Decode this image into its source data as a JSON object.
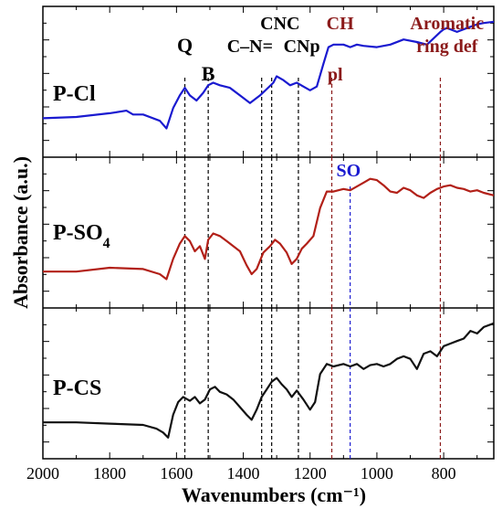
{
  "chart_data": {
    "type": "line",
    "xlabel": "Wavenumbers",
    "xunit": "(cm⁻¹)",
    "ylabel": "Absorbance (a.u.)",
    "xlim": [
      2000,
      650
    ],
    "x_reversed": true,
    "x_ticks": [
      2000,
      1800,
      1600,
      1400,
      1200,
      1000,
      800
    ],
    "y_ticks": "unlabeled",
    "grid": false,
    "panels": [
      {
        "label_main": "P-Cl",
        "label_sub": "",
        "color": "#1a1ad0",
        "x": [
          2000,
          1900,
          1800,
          1750,
          1730,
          1700,
          1650,
          1630,
          1610,
          1590,
          1575,
          1560,
          1540,
          1520,
          1505,
          1490,
          1470,
          1440,
          1410,
          1380,
          1350,
          1330,
          1310,
          1300,
          1280,
          1260,
          1240,
          1220,
          1200,
          1180,
          1160,
          1145,
          1130,
          1100,
          1080,
          1060,
          1040,
          1000,
          960,
          920,
          880,
          850,
          830,
          810,
          800,
          790,
          760,
          730,
          700,
          680,
          650
        ],
        "y": [
          0.22,
          0.23,
          0.26,
          0.28,
          0.25,
          0.25,
          0.2,
          0.14,
          0.3,
          0.4,
          0.46,
          0.4,
          0.36,
          0.42,
          0.48,
          0.5,
          0.48,
          0.46,
          0.4,
          0.34,
          0.4,
          0.45,
          0.5,
          0.55,
          0.52,
          0.48,
          0.5,
          0.47,
          0.44,
          0.47,
          0.65,
          0.78,
          0.8,
          0.8,
          0.78,
          0.8,
          0.79,
          0.78,
          0.8,
          0.84,
          0.82,
          0.8,
          0.85,
          0.9,
          0.92,
          0.93,
          0.9,
          0.93,
          0.96,
          0.97,
          0.98
        ]
      },
      {
        "label_main": "P-SO",
        "label_sub": "4",
        "color": "#b22018",
        "x": [
          2000,
          1900,
          1800,
          1700,
          1650,
          1630,
          1610,
          1590,
          1575,
          1560,
          1545,
          1530,
          1515,
          1505,
          1490,
          1470,
          1450,
          1430,
          1410,
          1390,
          1375,
          1360,
          1340,
          1320,
          1305,
          1290,
          1270,
          1255,
          1240,
          1225,
          1210,
          1190,
          1170,
          1150,
          1130,
          1100,
          1080,
          1060,
          1040,
          1020,
          1000,
          980,
          960,
          940,
          920,
          900,
          880,
          860,
          840,
          820,
          800,
          780,
          760,
          740,
          720,
          700,
          680,
          650
        ],
        "y": [
          0.2,
          0.2,
          0.23,
          0.22,
          0.18,
          0.14,
          0.3,
          0.42,
          0.48,
          0.44,
          0.36,
          0.4,
          0.3,
          0.45,
          0.5,
          0.48,
          0.44,
          0.4,
          0.36,
          0.25,
          0.18,
          0.22,
          0.35,
          0.4,
          0.45,
          0.42,
          0.35,
          0.26,
          0.3,
          0.38,
          0.42,
          0.48,
          0.7,
          0.83,
          0.83,
          0.85,
          0.84,
          0.87,
          0.9,
          0.93,
          0.92,
          0.88,
          0.83,
          0.82,
          0.86,
          0.84,
          0.8,
          0.78,
          0.82,
          0.85,
          0.87,
          0.88,
          0.86,
          0.85,
          0.83,
          0.84,
          0.82,
          0.8
        ]
      },
      {
        "label_main": "P-CS",
        "label_sub": "",
        "color": "#111111",
        "x": [
          2000,
          1900,
          1800,
          1700,
          1660,
          1640,
          1625,
          1610,
          1595,
          1580,
          1560,
          1545,
          1530,
          1515,
          1500,
          1485,
          1470,
          1450,
          1430,
          1410,
          1390,
          1375,
          1360,
          1345,
          1330,
          1315,
          1300,
          1285,
          1270,
          1255,
          1240,
          1220,
          1200,
          1185,
          1170,
          1150,
          1130,
          1100,
          1080,
          1060,
          1040,
          1020,
          1000,
          980,
          960,
          940,
          920,
          900,
          880,
          860,
          840,
          820,
          800,
          780,
          760,
          740,
          720,
          700,
          680,
          650
        ],
        "y": [
          0.2,
          0.2,
          0.19,
          0.18,
          0.15,
          0.12,
          0.08,
          0.26,
          0.36,
          0.4,
          0.37,
          0.4,
          0.35,
          0.38,
          0.46,
          0.48,
          0.44,
          0.42,
          0.38,
          0.32,
          0.26,
          0.22,
          0.3,
          0.4,
          0.46,
          0.52,
          0.55,
          0.5,
          0.46,
          0.4,
          0.45,
          0.38,
          0.3,
          0.36,
          0.58,
          0.66,
          0.64,
          0.66,
          0.64,
          0.66,
          0.62,
          0.65,
          0.66,
          0.64,
          0.66,
          0.7,
          0.72,
          0.7,
          0.62,
          0.74,
          0.76,
          0.72,
          0.8,
          0.82,
          0.84,
          0.86,
          0.92,
          0.9,
          0.95,
          0.98
        ]
      }
    ],
    "vlines": [
      {
        "x": 1575,
        "color": "#000000",
        "panels": [
          0,
          1,
          2
        ]
      },
      {
        "x": 1505,
        "color": "#000000",
        "panels": [
          0,
          1,
          2
        ]
      },
      {
        "x": 1345,
        "color": "#000000",
        "panels": [
          0,
          1,
          2
        ]
      },
      {
        "x": 1315,
        "color": "#000000",
        "panels": [
          0,
          1,
          2
        ]
      },
      {
        "x": 1235,
        "color": "#000000",
        "panels": [
          0,
          1,
          2
        ]
      },
      {
        "x": 1135,
        "color": "#8b1a1a",
        "panels": [
          0,
          1,
          2
        ]
      },
      {
        "x": 1080,
        "color": "#1a1ad0",
        "panels": [
          1,
          2
        ]
      },
      {
        "x": 810,
        "color": "#8b1a1a",
        "panels": [
          0,
          1,
          2
        ]
      }
    ],
    "annotations": [
      {
        "text": "Q",
        "color": "#000000",
        "x": 1575,
        "panel": 0,
        "row": 1
      },
      {
        "text": "B",
        "color": "#000000",
        "x": 1505,
        "panel": 0,
        "row": 2
      },
      {
        "text": "C–N=",
        "color": "#000000",
        "x": 1380,
        "panel": 0,
        "row": 1
      },
      {
        "text": "CNC",
        "color": "#000000",
        "x": 1290,
        "panel": 0,
        "row": 0
      },
      {
        "text": "CNp",
        "color": "#000000",
        "x": 1225,
        "panel": 0,
        "row": 1
      },
      {
        "text": "CH",
        "color": "#8b1a1a",
        "x": 1110,
        "panel": 0,
        "row": 0
      },
      {
        "text": "pl",
        "color": "#8b1a1a",
        "x": 1125,
        "panel": 0,
        "row": 2
      },
      {
        "text": "Aromatic",
        "color": "#8b1a1a",
        "x": 790,
        "panel": 0,
        "row": 0
      },
      {
        "text": "ring def",
        "color": "#8b1a1a",
        "x": 790,
        "panel": 0,
        "row": 1
      },
      {
        "text": "SO",
        "color": "#1a1ad0",
        "x": 1085,
        "panel": 1,
        "row": 0
      }
    ]
  }
}
